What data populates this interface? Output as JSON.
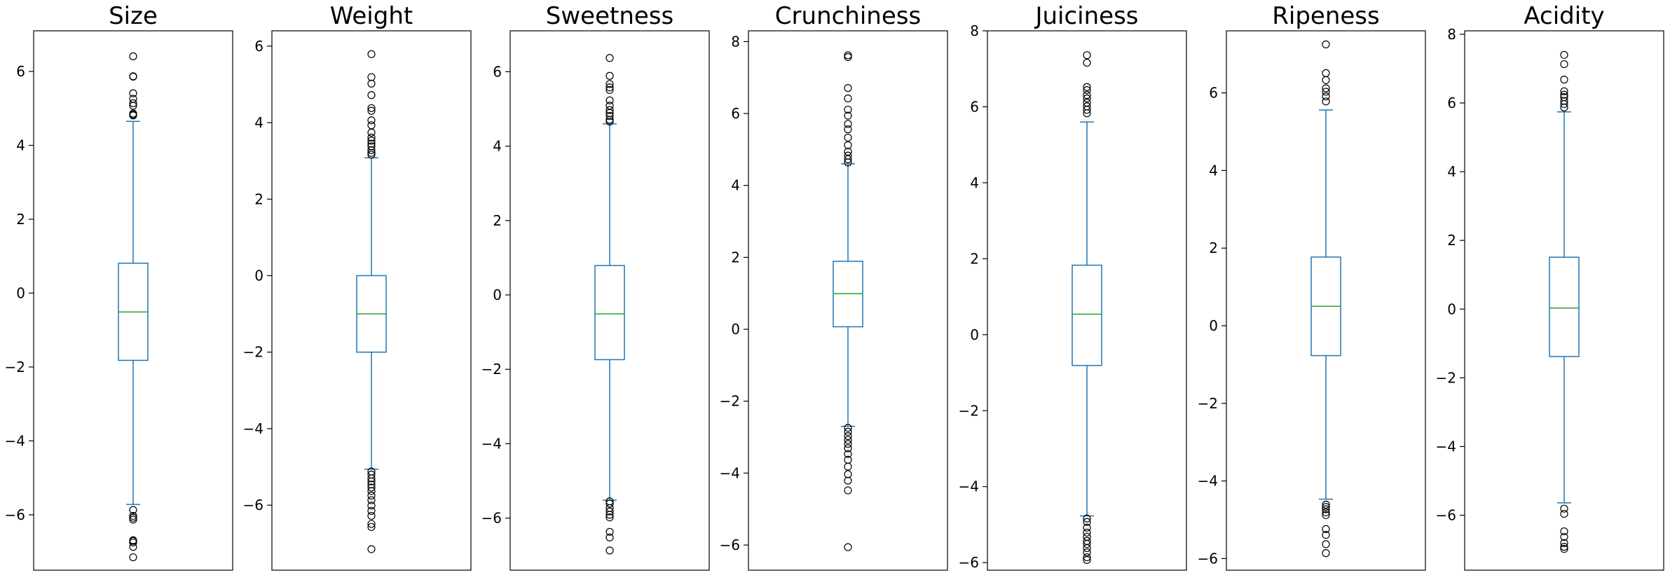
{
  "colors": {
    "box": "#1f77b4",
    "median": "#2ca02c",
    "frame": "#000000",
    "outlier_edge": "#000000"
  },
  "chart_data": [
    {
      "type": "box",
      "title": "Size",
      "ylim": [
        -7.5,
        7.1
      ],
      "yticks": [
        -6,
        -4,
        -2,
        0,
        2,
        4,
        6
      ],
      "tick_labels": [
        "−6",
        "−4",
        "−2",
        "0",
        "2",
        "4",
        "6"
      ],
      "box": {
        "whisker_low": -5.72,
        "q1": -1.82,
        "median": -0.51,
        "q3": 0.81,
        "whisker_high": 4.65
      },
      "outliers": [
        6.41,
        5.87,
        5.86,
        5.41,
        5.26,
        5.14,
        5.07,
        4.86,
        4.83,
        4.81,
        -5.87,
        -6.03,
        -6.08,
        -6.13,
        -6.69,
        -6.71,
        -6.75,
        -6.87,
        -7.15
      ]
    },
    {
      "type": "box",
      "title": "Weight",
      "ylim": [
        -7.7,
        6.4
      ],
      "yticks": [
        -6,
        -4,
        -2,
        0,
        2,
        4,
        6
      ],
      "tick_labels": [
        "−6",
        "−4",
        "−2",
        "0",
        "2",
        "4",
        "6"
      ],
      "box": {
        "whisker_low": -5.06,
        "q1": -2.0,
        "median": -1.0,
        "q3": 0.0,
        "whisker_high": 3.08
      },
      "outliers": [
        5.79,
        5.19,
        5.02,
        4.72,
        4.38,
        4.31,
        4.06,
        3.93,
        3.74,
        3.61,
        3.53,
        3.45,
        3.38,
        3.28,
        3.21,
        3.16,
        -5.12,
        -5.2,
        -5.3,
        -5.38,
        -5.46,
        -5.54,
        -5.63,
        -5.75,
        -5.87,
        -6.01,
        -6.15,
        -6.28,
        -6.49,
        -6.57,
        -7.15
      ]
    },
    {
      "type": "box",
      "title": "Sweetness",
      "ylim": [
        -7.4,
        7.1
      ],
      "yticks": [
        -6,
        -4,
        -2,
        0,
        2,
        4,
        6
      ],
      "tick_labels": [
        "−6",
        "−4",
        "−2",
        "0",
        "2",
        "4",
        "6"
      ],
      "box": {
        "whisker_low": -5.52,
        "q1": -1.74,
        "median": -0.51,
        "q3": 0.79,
        "whisker_high": 4.6
      },
      "outliers": [
        6.37,
        5.89,
        5.67,
        5.58,
        5.51,
        5.23,
        5.09,
        4.97,
        4.89,
        4.81,
        4.71,
        4.66,
        -5.55,
        -5.61,
        -5.73,
        -5.82,
        -5.91,
        -5.98,
        -6.37,
        -6.52,
        -6.87
      ]
    },
    {
      "type": "box",
      "title": "Crunchiness",
      "ylim": [
        -6.7,
        8.3
      ],
      "yticks": [
        -6,
        -4,
        -2,
        0,
        2,
        4,
        6,
        8
      ],
      "tick_labels": [
        "−6",
        "−4",
        "−2",
        "0",
        "2",
        "4",
        "6",
        "8"
      ],
      "box": {
        "whisker_low": -2.7,
        "q1": 0.07,
        "median": 0.99,
        "q3": 1.89,
        "whisker_high": 4.6
      },
      "outliers": [
        7.62,
        7.57,
        6.71,
        6.42,
        6.11,
        5.94,
        5.71,
        5.56,
        5.33,
        5.12,
        4.94,
        4.83,
        4.73,
        4.64,
        -2.74,
        -2.85,
        -2.97,
        -3.08,
        -3.19,
        -3.31,
        -3.47,
        -3.63,
        -3.82,
        -4.03,
        -4.21,
        -4.48,
        -6.06
      ]
    },
    {
      "type": "box",
      "title": "Juiciness",
      "ylim": [
        -6.2,
        8.0
      ],
      "yticks": [
        -6,
        -4,
        -2,
        0,
        2,
        4,
        6,
        8
      ],
      "tick_labels": [
        "−6",
        "−4",
        "−2",
        "0",
        "2",
        "4",
        "6",
        "8"
      ],
      "box": {
        "whisker_low": -4.77,
        "q1": -0.81,
        "median": 0.54,
        "q3": 1.83,
        "whisker_high": 5.6
      },
      "outliers": [
        7.36,
        7.16,
        6.52,
        6.44,
        6.31,
        6.22,
        6.11,
        6.01,
        5.92,
        5.83,
        -4.84,
        -4.93,
        -5.08,
        -5.21,
        -5.32,
        -5.43,
        -5.51,
        -5.62,
        -5.73,
        -5.86,
        -5.93
      ]
    },
    {
      "type": "box",
      "title": "Ripeness",
      "ylim": [
        -6.3,
        7.6
      ],
      "yticks": [
        -6,
        -4,
        -2,
        0,
        2,
        4,
        6
      ],
      "tick_labels": [
        "−6",
        "−4",
        "−2",
        "0",
        "2",
        "4",
        "6"
      ],
      "box": {
        "whisker_low": -4.47,
        "q1": -0.77,
        "median": 0.5,
        "q3": 1.77,
        "whisker_high": 5.56
      },
      "outliers": [
        7.25,
        6.51,
        6.33,
        6.12,
        6.03,
        5.91,
        5.78,
        -4.61,
        -4.67,
        -4.73,
        -4.81,
        -4.88,
        -5.24,
        -5.39,
        -5.63,
        -5.86
      ]
    },
    {
      "type": "box",
      "title": "Acidity",
      "ylim": [
        -7.6,
        8.1
      ],
      "yticks": [
        -6,
        -4,
        -2,
        0,
        2,
        4,
        6,
        8
      ],
      "tick_labels": [
        "−6",
        "−4",
        "−2",
        "0",
        "2",
        "4",
        "6",
        "8"
      ],
      "box": {
        "whisker_low": -5.64,
        "q1": -1.38,
        "median": 0.03,
        "q3": 1.51,
        "whisker_high": 5.74
      },
      "outliers": [
        7.4,
        7.13,
        6.68,
        6.34,
        6.24,
        6.17,
        6.06,
        5.97,
        5.87,
        -5.81,
        -5.96,
        -6.47,
        -6.63,
        -6.81,
        -6.92,
        -6.98
      ]
    }
  ]
}
